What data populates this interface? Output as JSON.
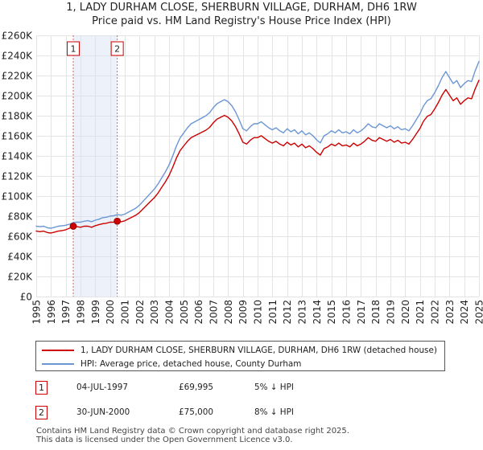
{
  "chart_data": {
    "type": "line",
    "title": "1, LADY DURHAM CLOSE, SHERBURN VILLAGE, DURHAM, DH6 1RW",
    "subtitle": "Price paid vs. HM Land Registry's House Price Index (HPI)",
    "xlabel": "",
    "ylabel": "",
    "xlim": [
      1995,
      2025
    ],
    "ylim": [
      0,
      260000
    ],
    "grid": true,
    "legend": "bottom",
    "y_ticks": [
      0,
      20000,
      40000,
      60000,
      80000,
      100000,
      120000,
      140000,
      160000,
      180000,
      200000,
      220000,
      240000,
      260000
    ],
    "y_tick_labels": [
      "£0",
      "£20K",
      "£40K",
      "£60K",
      "£80K",
      "£100K",
      "£120K",
      "£140K",
      "£160K",
      "£180K",
      "£200K",
      "£220K",
      "£240K",
      "£260K"
    ],
    "x_ticks": [
      1995,
      1996,
      1997,
      1998,
      1999,
      2000,
      2001,
      2002,
      2003,
      2004,
      2005,
      2006,
      2007,
      2008,
      2009,
      2010,
      2011,
      2012,
      2013,
      2014,
      2015,
      2016,
      2017,
      2018,
      2019,
      2020,
      2021,
      2022,
      2023,
      2024,
      2025
    ],
    "x_tick_labels": [
      "1995",
      "1996",
      "1997",
      "1998",
      "1999",
      "2000",
      "2001",
      "2002",
      "2003",
      "2004",
      "2005",
      "2006",
      "2007",
      "2008",
      "2009",
      "2010",
      "2011",
      "2012",
      "2013",
      "2014",
      "2015",
      "2016",
      "2017",
      "2018",
      "2019",
      "2020",
      "2021",
      "2022",
      "2023",
      "2024",
      "2025"
    ],
    "x_start": 1995,
    "x_step": 0.25,
    "colors": {
      "property": "#cc0000",
      "hpi": "#6a96d4",
      "band": "#d6e2f3",
      "marker_line": "#e06060"
    },
    "series": [
      {
        "name": "1, LADY DURHAM CLOSE, SHERBURN VILLAGE, DURHAM, DH6 1RW (detached house)",
        "color": "#cc0000",
        "values": [
          65100,
          64600,
          65100,
          63700,
          63200,
          64200,
          65100,
          65600,
          66500,
          68000,
          70000,
          69500,
          69000,
          70000,
          70000,
          69000,
          70500,
          71500,
          72500,
          73000,
          74000,
          74000,
          75000,
          74500,
          75400,
          77300,
          79100,
          81000,
          83700,
          87400,
          91100,
          94800,
          98400,
          103000,
          108600,
          114100,
          120500,
          128800,
          138000,
          145400,
          150000,
          154600,
          158200,
          160100,
          161900,
          163800,
          165600,
          168400,
          173000,
          176600,
          178500,
          180300,
          178500,
          174800,
          169300,
          161900,
          153600,
          151800,
          155500,
          158200,
          158200,
          160100,
          157300,
          154600,
          152700,
          154600,
          151800,
          150000,
          153600,
          150900,
          152700,
          149000,
          151800,
          148100,
          150000,
          147200,
          143500,
          140800,
          147200,
          149000,
          151800,
          150000,
          152700,
          150000,
          150900,
          149000,
          152700,
          150000,
          151800,
          154600,
          158200,
          155500,
          154600,
          158200,
          156400,
          154600,
          156400,
          153600,
          155500,
          152700,
          153600,
          151800,
          156400,
          161900,
          167400,
          174800,
          179400,
          181200,
          186800,
          193200,
          200600,
          206100,
          200600,
          195000,
          197800,
          191400,
          195000,
          197800,
          196900,
          207000,
          215300
        ]
      },
      {
        "name": "HPI: Average price, detached house, County Durham",
        "color": "#6a96d4",
        "values": [
          70000,
          69500,
          70000,
          68500,
          68000,
          69000,
          70000,
          70500,
          71000,
          72000,
          73500,
          74000,
          74000,
          75000,
          75500,
          74500,
          76000,
          77000,
          78500,
          79000,
          80000,
          80500,
          81500,
          81000,
          82000,
          84000,
          86000,
          88000,
          91000,
          95000,
          99000,
          103000,
          107000,
          112000,
          118000,
          124000,
          131000,
          140000,
          150000,
          158000,
          163000,
          168000,
          172000,
          174000,
          176000,
          178000,
          180000,
          183000,
          188000,
          192000,
          194000,
          196000,
          194000,
          190000,
          184000,
          176000,
          167000,
          165000,
          169000,
          172000,
          172000,
          174000,
          171000,
          168000,
          166000,
          168000,
          165000,
          163000,
          167000,
          164000,
          166000,
          162000,
          165000,
          161000,
          163000,
          160000,
          156000,
          153000,
          160000,
          162000,
          165000,
          163000,
          166000,
          163000,
          164000,
          162000,
          166000,
          163000,
          165000,
          168000,
          172000,
          169000,
          168000,
          172000,
          170000,
          168000,
          170000,
          167000,
          169000,
          166000,
          167000,
          165000,
          170000,
          176000,
          182000,
          190000,
          195000,
          197000,
          203000,
          210000,
          218000,
          224000,
          218000,
          212000,
          215000,
          208000,
          212000,
          215000,
          214000,
          225000,
          234000
        ]
      }
    ],
    "sales": [
      {
        "label": "1",
        "date": "04-JUL-1997",
        "x": 1997.51,
        "price": 69995,
        "price_label": "£69,995",
        "hpi_change": "5% ↓ HPI"
      },
      {
        "label": "2",
        "date": "30-JUN-2000",
        "x": 2000.49,
        "price": 75000,
        "price_label": "£75,000",
        "hpi_change": "8% ↓ HPI"
      }
    ]
  },
  "footer": {
    "line1": "Contains HM Land Registry data © Crown copyright and database right 2025.",
    "line2": "This data is licensed under the Open Government Licence v3.0."
  }
}
